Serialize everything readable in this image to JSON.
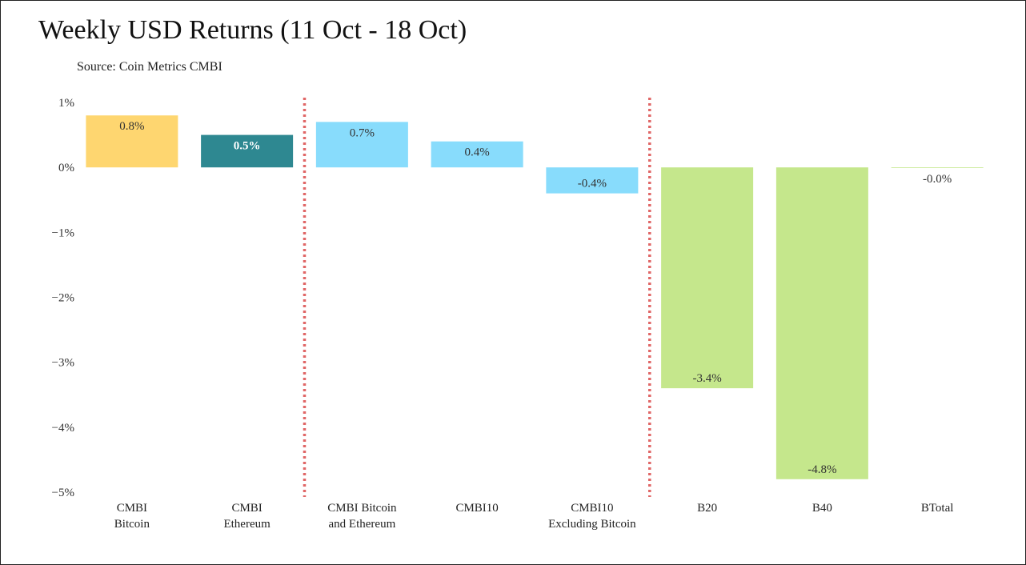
{
  "title": "Weekly USD Returns (11 Oct - 18 Oct)",
  "subtitle": "Source: Coin Metrics CMBI",
  "chart_data": {
    "type": "bar",
    "categories": [
      [
        "CMBI",
        "Bitcoin"
      ],
      [
        "CMBI",
        "Ethereum"
      ],
      [
        "CMBI Bitcoin",
        "and Ethereum"
      ],
      [
        "CMBI10"
      ],
      [
        "CMBI10",
        "Excluding Bitcoin"
      ],
      [
        "B20"
      ],
      [
        "B40"
      ],
      [
        "BTotal"
      ]
    ],
    "values": [
      0.8,
      0.5,
      0.7,
      0.4,
      -0.4,
      -3.4,
      -4.8,
      -0.0
    ],
    "data_labels": [
      "0.8%",
      "0.5%",
      "0.7%",
      "0.4%",
      "-0.4%",
      "-3.4%",
      "-4.8%",
      "-0.0%"
    ],
    "colors": [
      "#fed670",
      "#2e8891",
      "#88dcfc",
      "#88dcfc",
      "#88dcfc",
      "#c5e78c",
      "#c5e78c",
      "#c5e78c"
    ],
    "label_colors": [
      "#333333",
      "#ffffff",
      "#333333",
      "#333333",
      "#333333",
      "#333333",
      "#333333",
      "#333333"
    ],
    "ylim": [
      -5,
      1
    ],
    "yticks": [
      1,
      0,
      -1,
      -2,
      -3,
      -4,
      -5
    ],
    "ytick_labels": [
      "1%",
      "0%",
      "−1%",
      "−2%",
      "−3%",
      "−4%",
      "−5%"
    ],
    "separators_after": [
      1,
      4
    ],
    "separator_color": "#e06666",
    "grid": false,
    "xlabel": "",
    "ylabel": ""
  }
}
